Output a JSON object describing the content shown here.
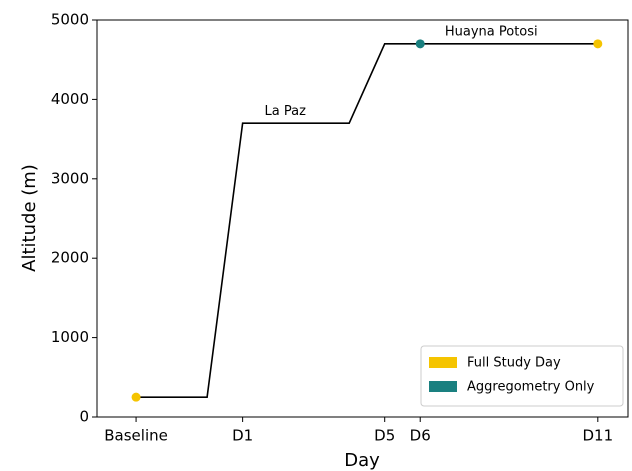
{
  "chart_data": {
    "type": "line",
    "xlabel": "Day",
    "ylabel": "Altitude (m)",
    "x": [
      -2,
      0,
      1,
      4,
      5,
      11
    ],
    "values": [
      250,
      250,
      3700,
      3700,
      4700,
      4700
    ],
    "color": "#000000",
    "points": [
      {
        "name": "Full Study Day",
        "color": "#f5c400",
        "x": [
          -2,
          11
        ],
        "values": [
          250,
          4700
        ]
      },
      {
        "name": "Aggregometry Only",
        "color": "#1a8080",
        "x": [
          6
        ],
        "values": [
          4700
        ]
      }
    ],
    "annotations": [
      {
        "text": "La Paz",
        "x": 2.2,
        "y": 3850
      },
      {
        "text": "Huayna Potosi",
        "x": 8,
        "y": 4850
      }
    ],
    "xlim": [
      -3.1,
      11.85
    ],
    "ylim": [
      0,
      5000
    ],
    "xticks": [
      {
        "value": -2,
        "label": "Baseline"
      },
      {
        "value": 1,
        "label": "D1"
      },
      {
        "value": 5,
        "label": "D5"
      },
      {
        "value": 6,
        "label": "D6"
      },
      {
        "value": 11,
        "label": "D11"
      }
    ],
    "yticks": [
      0,
      1000,
      2000,
      3000,
      4000,
      5000
    ],
    "legend": "lower right"
  }
}
